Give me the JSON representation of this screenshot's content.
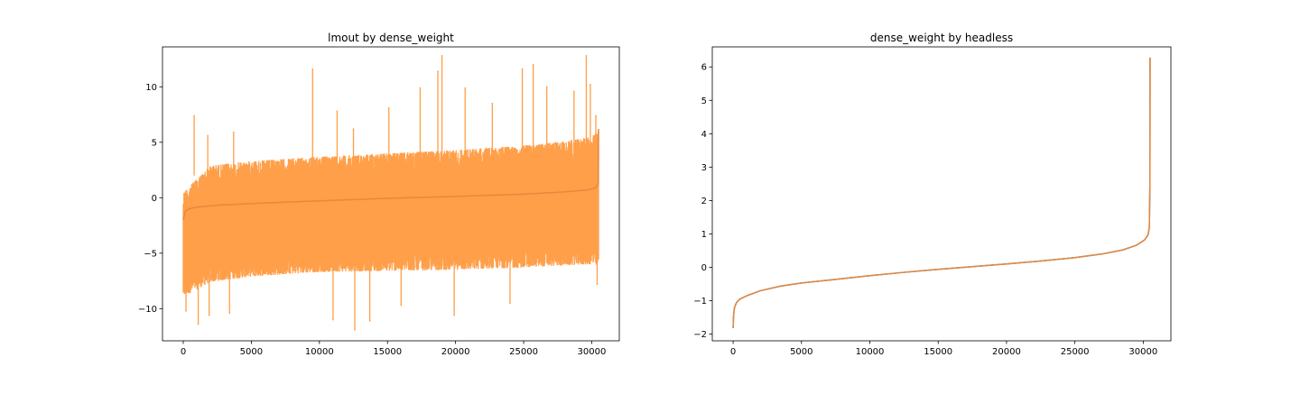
{
  "figure": {
    "background": "#ffffff"
  },
  "chart_data": [
    {
      "type": "line",
      "title": "lmout by dense_weight",
      "xlabel": "",
      "ylabel": "",
      "xlim": [
        -1525,
        32025
      ],
      "ylim": [
        -12.9,
        13.6
      ],
      "xticks": [
        0,
        5000,
        10000,
        15000,
        20000,
        25000,
        30000
      ],
      "xtick_labels": [
        "0",
        "5000",
        "10000",
        "15000",
        "20000",
        "25000",
        "30000"
      ],
      "yticks": [
        -10,
        -5,
        0,
        5,
        10
      ],
      "ytick_labels": [
        "−10",
        "−5",
        "0",
        "5",
        "10"
      ],
      "grid": false,
      "legend": "none",
      "series": [
        {
          "style": "noisy-band",
          "color": "#ff9a3f",
          "n_points": 30500,
          "description_values": {
            "x": [
              0,
              2000,
              5000,
              10000,
              15000,
              20000,
              25000,
              28000,
              30000,
              30500
            ],
            "upper": [
              0.8,
              3.2,
              3.6,
              4.0,
              4.3,
              4.6,
              5.0,
              5.4,
              5.8,
              6.3
            ],
            "lower": [
              -9.2,
              -7.9,
              -7.4,
              -7.0,
              -6.9,
              -6.8,
              -6.6,
              -6.4,
              -6.3,
              -6.5
            ]
          },
          "spikes_up": [
            {
              "x": 800,
              "y": 7.4
            },
            {
              "x": 1800,
              "y": 5.6
            },
            {
              "x": 3700,
              "y": 5.9
            },
            {
              "x": 9500,
              "y": 11.6
            },
            {
              "x": 11300,
              "y": 7.8
            },
            {
              "x": 12500,
              "y": 6.2
            },
            {
              "x": 15100,
              "y": 8.1
            },
            {
              "x": 17400,
              "y": 9.9
            },
            {
              "x": 18700,
              "y": 11.4
            },
            {
              "x": 19000,
              "y": 12.8
            },
            {
              "x": 20700,
              "y": 9.9
            },
            {
              "x": 22700,
              "y": 8.5
            },
            {
              "x": 24900,
              "y": 11.6
            },
            {
              "x": 25700,
              "y": 12.0
            },
            {
              "x": 26700,
              "y": 10.0
            },
            {
              "x": 28700,
              "y": 9.6
            },
            {
              "x": 29600,
              "y": 12.8
            },
            {
              "x": 29900,
              "y": 10.2
            },
            {
              "x": 30300,
              "y": 7.4
            }
          ],
          "spikes_down": [
            {
              "x": 200,
              "y": -10.2
            },
            {
              "x": 1100,
              "y": -11.4
            },
            {
              "x": 1900,
              "y": -10.6
            },
            {
              "x": 3400,
              "y": -10.4
            },
            {
              "x": 11000,
              "y": -11.0
            },
            {
              "x": 12600,
              "y": -11.9
            },
            {
              "x": 13700,
              "y": -11.1
            },
            {
              "x": 16000,
              "y": -9.7
            },
            {
              "x": 19900,
              "y": -10.6
            },
            {
              "x": 24000,
              "y": -9.5
            },
            {
              "x": 30400,
              "y": -7.8
            }
          ]
        },
        {
          "style": "line",
          "color": "#e8883e",
          "x": [
            0,
            150,
            400,
            1000,
            2500,
            5000,
            10000,
            15000,
            20000,
            25000,
            28000,
            29800,
            30300,
            30480,
            30500
          ],
          "y": [
            -2.0,
            -1.2,
            -1.0,
            -0.85,
            -0.68,
            -0.52,
            -0.28,
            -0.06,
            0.12,
            0.32,
            0.52,
            0.72,
            0.9,
            1.3,
            6.2
          ]
        }
      ]
    },
    {
      "type": "line",
      "title": "dense_weight by headless",
      "xlabel": "",
      "ylabel": "",
      "xlim": [
        -1525,
        32025
      ],
      "ylim": [
        -2.2,
        6.6
      ],
      "xticks": [
        0,
        5000,
        10000,
        15000,
        20000,
        25000,
        30000
      ],
      "xtick_labels": [
        "0",
        "5000",
        "10000",
        "15000",
        "20000",
        "25000",
        "30000"
      ],
      "yticks": [
        -2,
        -1,
        0,
        1,
        2,
        3,
        4,
        5,
        6
      ],
      "ytick_labels": [
        "−2",
        "−1",
        "0",
        "1",
        "2",
        "3",
        "4",
        "5",
        "6"
      ],
      "grid": false,
      "legend": "none",
      "series": [
        {
          "style": "line",
          "color": "#1f77b4",
          "x": [
            0,
            30,
            100,
            250,
            500,
            1000,
            2000,
            3500,
            5000,
            7500,
            10000,
            12500,
            15000,
            17500,
            20000,
            22500,
            25000,
            27000,
            28500,
            29500,
            30100,
            30350,
            30450,
            30490,
            30500
          ],
          "y": [
            -1.82,
            -1.45,
            -1.2,
            -1.05,
            -0.95,
            -0.85,
            -0.7,
            -0.56,
            -0.47,
            -0.36,
            -0.25,
            -0.15,
            -0.06,
            0.02,
            0.1,
            0.19,
            0.29,
            0.4,
            0.52,
            0.66,
            0.82,
            0.97,
            1.2,
            2.5,
            6.28
          ]
        },
        {
          "style": "line",
          "color": "#e8883e",
          "x": [
            0,
            30,
            100,
            250,
            500,
            1000,
            2000,
            3500,
            5000,
            7500,
            10000,
            12500,
            15000,
            17500,
            20000,
            22500,
            25000,
            27000,
            28500,
            29500,
            30100,
            30350,
            30450,
            30490,
            30500
          ],
          "y": [
            -1.82,
            -1.45,
            -1.2,
            -1.05,
            -0.95,
            -0.85,
            -0.7,
            -0.56,
            -0.47,
            -0.36,
            -0.25,
            -0.15,
            -0.06,
            0.02,
            0.1,
            0.19,
            0.29,
            0.4,
            0.52,
            0.66,
            0.82,
            0.97,
            1.2,
            2.5,
            6.28
          ]
        }
      ]
    }
  ]
}
